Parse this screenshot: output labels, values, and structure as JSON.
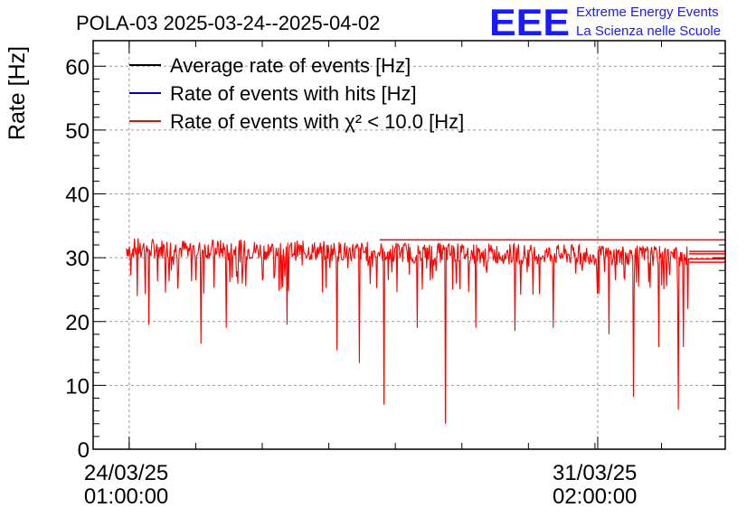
{
  "chart_data": {
    "type": "line",
    "title": "POLA-03 2025-03-24--2025-04-02",
    "ylabel": "Rate [Hz]",
    "xlabel": "",
    "ylim": [
      0,
      64
    ],
    "xlim_days_note": "",
    "x_range": [
      "2025-03-23 12:00:00",
      "2025-04-02 00:00:00"
    ],
    "y_ticks": [
      0,
      10,
      20,
      30,
      40,
      50,
      60
    ],
    "x_ticks": [
      {
        "date": "24/03/25",
        "time": "01:00:00",
        "x": "2025-03-24 01:00:00"
      },
      {
        "date": "31/03/25",
        "time": "02:00:00",
        "x": "2025-03-31 02:00:00"
      }
    ],
    "grid": true,
    "legend_position": "top-left",
    "series": [
      {
        "name": "Average rate of events [Hz]",
        "color": "#000000"
      },
      {
        "name": "Rate of events with hits [Hz]",
        "color": "#0000cc"
      },
      {
        "name": "Rate of events with χ² < 10.0 [Hz]",
        "color": "#ff0000",
        "data_start": "2025-03-24 00:00:00",
        "data_end": "2025-04-01 11:00:00",
        "typical_value": 30.5,
        "upper_envelope": 32.8,
        "baseline_dip_min": 24,
        "dips": [
          {
            "x": "2025-03-24 04:00:00",
            "y": 24.0
          },
          {
            "x": "2025-03-24 08:00:00",
            "y": 19.5
          },
          {
            "x": "2025-03-25 03:00:00",
            "y": 16.5
          },
          {
            "x": "2025-03-25 12:00:00",
            "y": 19.0
          },
          {
            "x": "2025-03-26 10:00:00",
            "y": 19.5
          },
          {
            "x": "2025-03-27 04:00:00",
            "y": 15.5
          },
          {
            "x": "2025-03-27 12:00:00",
            "y": 13.5
          },
          {
            "x": "2025-03-27 21:00:00",
            "y": 7.0
          },
          {
            "x": "2025-03-28 09:00:00",
            "y": 19.0
          },
          {
            "x": "2025-03-28 19:00:00",
            "y": 4.0
          },
          {
            "x": "2025-03-29 06:00:00",
            "y": 19.0
          },
          {
            "x": "2025-03-29 20:00:00",
            "y": 18.5
          },
          {
            "x": "2025-03-30 10:00:00",
            "y": 19.0
          },
          {
            "x": "2025-03-31 06:00:00",
            "y": 18.0
          },
          {
            "x": "2025-03-31 15:00:00",
            "y": 8.2
          },
          {
            "x": "2025-04-01 00:00:00",
            "y": 16.0
          },
          {
            "x": "2025-04-01 07:00:00",
            "y": 6.2
          },
          {
            "x": "2025-04-01 09:00:00",
            "y": 16.0
          },
          {
            "x": "2025-04-01 10:30:00",
            "y": 22.0
          }
        ]
      }
    ]
  },
  "logo": {
    "mark": "EEE",
    "line1": "Extreme Energy Events",
    "line2": "La Scienza nelle Scuole",
    "color": "#1a1aff"
  }
}
